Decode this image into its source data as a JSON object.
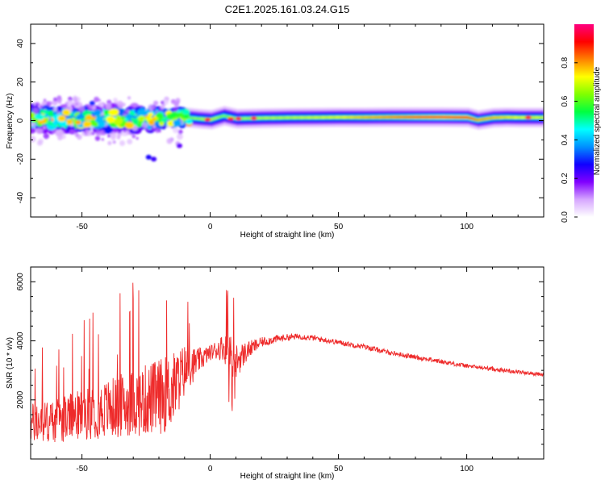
{
  "chart_data": [
    {
      "type": "heatmap",
      "title": "C2E1.2025.161.03.24.G15",
      "xlabel": "Height of straight line (km)",
      "ylabel": "Frequency (Hz)",
      "xlim": [
        -70,
        130
      ],
      "ylim": [
        -50,
        50
      ],
      "xticks": [
        -50,
        0,
        50,
        100
      ],
      "yticks": [
        -40,
        -20,
        0,
        20,
        40
      ],
      "colorbar": {
        "label": "Normalized spectral amplitude",
        "range": [
          0,
          1
        ],
        "ticks": [
          "0.0",
          "0.2",
          "0.4",
          "0.6",
          "0.8"
        ],
        "colormap": [
          "#ffffff",
          "#d6a6ff",
          "#8000ff",
          "#1000ff",
          "#0090ff",
          "#00ffff",
          "#00ff40",
          "#80ff00",
          "#ffff00",
          "#ff8000",
          "#ff0000",
          "#ff0080"
        ]
      },
      "ridge": {
        "x": [
          -70,
          -60,
          -50,
          -40,
          -30,
          -20,
          -12,
          -5,
          0,
          5,
          10,
          20,
          30,
          40,
          50,
          60,
          70,
          80,
          90,
          100,
          104,
          110,
          115,
          120,
          130
        ],
        "center_hz": [
          1.5,
          1.0,
          0.5,
          1.0,
          0.8,
          1.0,
          2.0,
          1.0,
          0.5,
          2.5,
          1.0,
          1.3,
          1.5,
          1.6,
          1.7,
          1.7,
          1.8,
          1.8,
          1.8,
          1.7,
          0.3,
          1.5,
          1.7,
          1.6,
          1.6
        ],
        "amplitude": [
          0.62,
          0.6,
          0.62,
          0.65,
          0.58,
          0.55,
          0.6,
          0.65,
          0.7,
          0.62,
          0.65,
          0.68,
          0.68,
          0.7,
          0.72,
          0.78,
          0.82,
          0.88,
          0.92,
          0.9,
          0.8,
          0.78,
          0.75,
          0.72,
          0.7
        ]
      },
      "scatter_region": {
        "x_range": [
          -70,
          -10
        ],
        "freq_range": [
          -20,
          14
        ],
        "notable_points": [
          {
            "x": -24,
            "f": -19,
            "amp": 0.45
          },
          {
            "x": -22,
            "f": -20,
            "amp": 0.4
          },
          {
            "x": -12,
            "f": -13,
            "amp": 0.35
          },
          {
            "x": -46,
            "f": 9,
            "amp": 0.5
          }
        ]
      }
    },
    {
      "type": "line",
      "xlabel": "Height of straight line (km)",
      "ylabel": "SNR (10 * v/v)",
      "xlim": [
        -70,
        130
      ],
      "ylim": [
        0,
        6500
      ],
      "xticks": [
        -50,
        0,
        50,
        100
      ],
      "yticks": [
        2000,
        4000,
        6000
      ],
      "series": [
        {
          "name": "SNR",
          "color": "#ee2a2a",
          "x": [
            -70,
            -60,
            -50,
            -40,
            -30,
            -20,
            -15,
            -10,
            -5,
            0,
            5,
            8,
            10,
            15,
            20,
            25,
            30,
            35,
            40,
            50,
            60,
            70,
            80,
            90,
            100,
            110,
            120,
            130
          ],
          "mean": [
            1200,
            1300,
            1500,
            1700,
            1900,
            2100,
            2300,
            3000,
            3300,
            3600,
            3800,
            3500,
            3300,
            3700,
            3950,
            4050,
            4120,
            4150,
            4100,
            3950,
            3800,
            3600,
            3450,
            3300,
            3150,
            3050,
            2950,
            2850
          ],
          "noise_amplitude": [
            700,
            750,
            850,
            1000,
            1150,
            1300,
            1300,
            900,
            450,
            250,
            450,
            700,
            600,
            300,
            170,
            140,
            110,
            100,
            100,
            90,
            90,
            80,
            80,
            80,
            70,
            70,
            70,
            60
          ]
        }
      ]
    }
  ]
}
